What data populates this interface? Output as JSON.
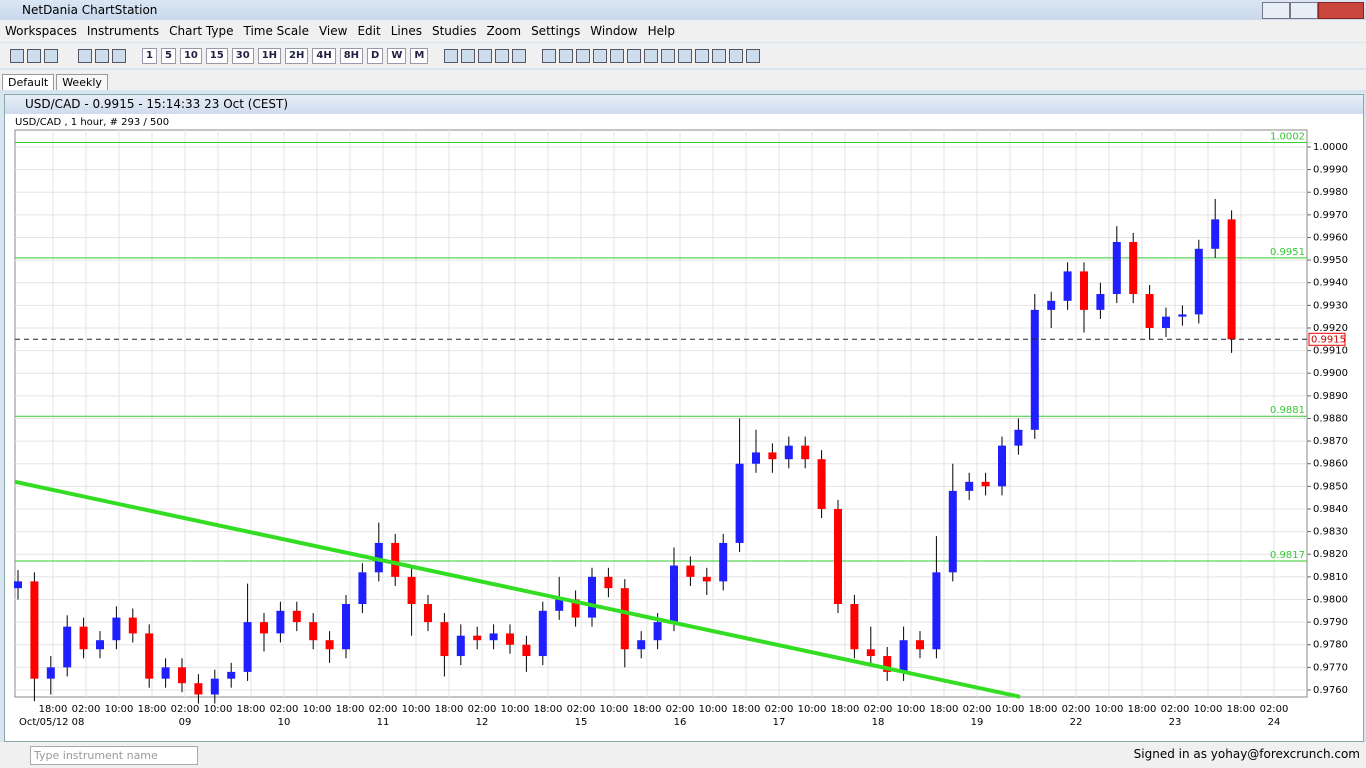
{
  "app_title": "NetDania ChartStation",
  "menu": [
    "Workspaces",
    "Instruments",
    "Chart Type",
    "Time Scale",
    "View",
    "Edit",
    "Lines",
    "Studies",
    "Zoom",
    "Settings",
    "Window",
    "Help"
  ],
  "timeframe_buttons": [
    "1",
    "5",
    "10",
    "15",
    "30",
    "1H",
    "2H",
    "4H",
    "8H",
    "D",
    "W",
    "M"
  ],
  "tabs": [
    "Default",
    "Weekly"
  ],
  "chart_window_title": "USD/CAD - 0.9915 - 15:14:33 23 Oct (CEST)",
  "status": {
    "search_placeholder": "Type instrument name",
    "signed_in": "Signed in as yohay@forexcrunch.com"
  },
  "chart_data": {
    "type": "candlestick",
    "subtitle": "USD/CAD , 1 hour, # 293 / 500",
    "x_labels": [
      "18:00",
      "02:00",
      "10:00",
      "18:00",
      "02:00",
      "10:00",
      "18:00",
      "02:00",
      "10:00",
      "18:00",
      "02:00",
      "10:00",
      "18:00",
      "02:00",
      "10:00",
      "18:00",
      "02:00",
      "10:00",
      "18:00",
      "02:00",
      "10:00",
      "18:00",
      "02:00",
      "10:00",
      "18:00",
      "02:00",
      "10:00",
      "18:00",
      "02:00",
      "10:00",
      "18:00",
      "02:00",
      "10:00",
      "18:00",
      "02:00",
      "10:00",
      "18:00",
      "02:00"
    ],
    "date_labels": [
      "Oct/05/12 08",
      null,
      null,
      null,
      "09",
      null,
      null,
      "10",
      null,
      null,
      "11",
      null,
      null,
      "12",
      null,
      null,
      "15",
      null,
      null,
      "16",
      null,
      null,
      "17",
      null,
      null,
      "18",
      null,
      null,
      "19",
      null,
      null,
      "22",
      null,
      null,
      "23",
      null,
      null,
      "24"
    ],
    "candles": [
      [
        0.9805,
        0.9813,
        0.98,
        0.9808
      ],
      [
        0.9808,
        0.9812,
        0.9755,
        0.9765
      ],
      [
        0.9765,
        0.9775,
        0.9758,
        0.977
      ],
      [
        0.977,
        0.9793,
        0.9766,
        0.9788
      ],
      [
        0.9788,
        0.9792,
        0.9774,
        0.9778
      ],
      [
        0.9778,
        0.9786,
        0.9774,
        0.9782
      ],
      [
        0.9782,
        0.9797,
        0.9778,
        0.9792
      ],
      [
        0.9792,
        0.9796,
        0.9781,
        0.9785
      ],
      [
        0.9785,
        0.9789,
        0.9761,
        0.9765
      ],
      [
        0.9765,
        0.9774,
        0.9761,
        0.977
      ],
      [
        0.977,
        0.9774,
        0.9759,
        0.9763
      ],
      [
        0.9763,
        0.9767,
        0.9754,
        0.9758
      ],
      [
        0.9758,
        0.9769,
        0.9754,
        0.9765
      ],
      [
        0.9765,
        0.9772,
        0.9761,
        0.9768
      ],
      [
        0.9768,
        0.9807,
        0.9764,
        0.979
      ],
      [
        0.979,
        0.9794,
        0.9777,
        0.9785
      ],
      [
        0.9785,
        0.9799,
        0.9781,
        0.9795
      ],
      [
        0.9795,
        0.9799,
        0.9786,
        0.979
      ],
      [
        0.979,
        0.9794,
        0.9778,
        0.9782
      ],
      [
        0.9782,
        0.9786,
        0.9772,
        0.9778
      ],
      [
        0.9778,
        0.9802,
        0.9774,
        0.9798
      ],
      [
        0.9798,
        0.9816,
        0.9794,
        0.9812
      ],
      [
        0.9812,
        0.9834,
        0.9808,
        0.9825
      ],
      [
        0.9825,
        0.9829,
        0.9806,
        0.981
      ],
      [
        0.981,
        0.9814,
        0.9784,
        0.9798
      ],
      [
        0.9798,
        0.9802,
        0.9786,
        0.979
      ],
      [
        0.979,
        0.9794,
        0.9766,
        0.9775
      ],
      [
        0.9775,
        0.9789,
        0.9771,
        0.9784
      ],
      [
        0.9784,
        0.9788,
        0.9778,
        0.9782
      ],
      [
        0.9782,
        0.9789,
        0.9778,
        0.9785
      ],
      [
        0.9785,
        0.9789,
        0.9776,
        0.978
      ],
      [
        0.978,
        0.9784,
        0.9768,
        0.9775
      ],
      [
        0.9775,
        0.9799,
        0.9771,
        0.9795
      ],
      [
        0.9795,
        0.981,
        0.9791,
        0.98
      ],
      [
        0.98,
        0.9804,
        0.9788,
        0.9792
      ],
      [
        0.9792,
        0.9814,
        0.9788,
        0.981
      ],
      [
        0.981,
        0.9814,
        0.9801,
        0.9805
      ],
      [
        0.9805,
        0.9809,
        0.977,
        0.9778
      ],
      [
        0.9778,
        0.9786,
        0.9774,
        0.9782
      ],
      [
        0.9782,
        0.9794,
        0.9778,
        0.979
      ],
      [
        0.979,
        0.9823,
        0.9786,
        0.9815
      ],
      [
        0.9815,
        0.9819,
        0.9806,
        0.981
      ],
      [
        0.981,
        0.9814,
        0.9802,
        0.9808
      ],
      [
        0.9808,
        0.9829,
        0.9804,
        0.9825
      ],
      [
        0.9825,
        0.988,
        0.9821,
        0.986
      ],
      [
        0.986,
        0.9875,
        0.9856,
        0.9865
      ],
      [
        0.9865,
        0.9869,
        0.9856,
        0.9862
      ],
      [
        0.9862,
        0.9872,
        0.9858,
        0.9868
      ],
      [
        0.9868,
        0.9872,
        0.9858,
        0.9862
      ],
      [
        0.9862,
        0.9866,
        0.9836,
        0.984
      ],
      [
        0.984,
        0.9844,
        0.9794,
        0.9798
      ],
      [
        0.9798,
        0.9802,
        0.9774,
        0.9778
      ],
      [
        0.9778,
        0.9788,
        0.9771,
        0.9775
      ],
      [
        0.9775,
        0.9779,
        0.9764,
        0.9768
      ],
      [
        0.9768,
        0.9788,
        0.9764,
        0.9782
      ],
      [
        0.9782,
        0.9786,
        0.9774,
        0.9778
      ],
      [
        0.9778,
        0.9828,
        0.9774,
        0.9812
      ],
      [
        0.9812,
        0.986,
        0.9808,
        0.9848
      ],
      [
        0.9848,
        0.9856,
        0.9844,
        0.9852
      ],
      [
        0.9852,
        0.9856,
        0.9846,
        0.985
      ],
      [
        0.985,
        0.9872,
        0.9846,
        0.9868
      ],
      [
        0.9868,
        0.988,
        0.9864,
        0.9875
      ],
      [
        0.9875,
        0.9935,
        0.9871,
        0.9928
      ],
      [
        0.9928,
        0.9936,
        0.992,
        0.9932
      ],
      [
        0.9932,
        0.9949,
        0.9928,
        0.9945
      ],
      [
        0.9945,
        0.9949,
        0.9918,
        0.9928
      ],
      [
        0.9928,
        0.994,
        0.9924,
        0.9935
      ],
      [
        0.9935,
        0.9965,
        0.9931,
        0.9958
      ],
      [
        0.9958,
        0.9962,
        0.9931,
        0.9935
      ],
      [
        0.9935,
        0.9939,
        0.9915,
        0.992
      ],
      [
        0.992,
        0.9929,
        0.9916,
        0.9925
      ],
      [
        0.9925,
        0.993,
        0.9921,
        0.9926
      ],
      [
        0.9926,
        0.9959,
        0.9922,
        0.9955
      ],
      [
        0.9955,
        0.9977,
        0.9951,
        0.9968
      ],
      [
        0.9968,
        0.9972,
        0.9909,
        0.9915
      ]
    ],
    "up_color": "#1f1fff",
    "down_color": "#ff0000",
    "ylim": [
      0.97569,
      1.00075
    ],
    "yticks": [
      {
        "value": 0.976,
        "label": "0.9760"
      },
      {
        "value": 0.977,
        "label": "0.9770"
      },
      {
        "value": 0.978,
        "label": "0.9780"
      },
      {
        "value": 0.979,
        "label": "0.9790"
      },
      {
        "value": 0.98,
        "label": "0.9800"
      },
      {
        "value": 0.981,
        "label": "0.9810"
      },
      {
        "value": 0.982,
        "label": "0.9820"
      },
      {
        "value": 0.983,
        "label": "0.9830"
      },
      {
        "value": 0.984,
        "label": "0.9840"
      },
      {
        "value": 0.985,
        "label": "0.9850"
      },
      {
        "value": 0.986,
        "label": "0.9860"
      },
      {
        "value": 0.987,
        "label": "0.9870"
      },
      {
        "value": 0.988,
        "label": "0.9880"
      },
      {
        "value": 0.989,
        "label": "0.9890"
      },
      {
        "value": 0.99,
        "label": "0.9900"
      },
      {
        "value": 0.991,
        "label": "0.9910"
      },
      {
        "value": 0.992,
        "label": "0.9920"
      },
      {
        "value": 0.993,
        "label": "0.9930"
      },
      {
        "value": 0.994,
        "label": "0.9940"
      },
      {
        "value": 0.995,
        "label": "0.9950"
      },
      {
        "value": 0.996,
        "label": "0.9960"
      },
      {
        "value": 0.997,
        "label": "0.9970"
      },
      {
        "value": 0.998,
        "label": "0.9980"
      },
      {
        "value": 0.999,
        "label": "0.9990"
      },
      {
        "value": 1,
        "label": "1.0000"
      }
    ],
    "levels": [
      1.0002,
      0.9951,
      0.9881,
      0.9817
    ],
    "level_color": "#33cc33",
    "current": 0.9915,
    "trendline": {
      "x": [
        -0.18,
        61.1
      ],
      "y": [
        0.9852,
        0.9757
      ]
    },
    "trendline_color": "#33dd22",
    "grid": true
  }
}
